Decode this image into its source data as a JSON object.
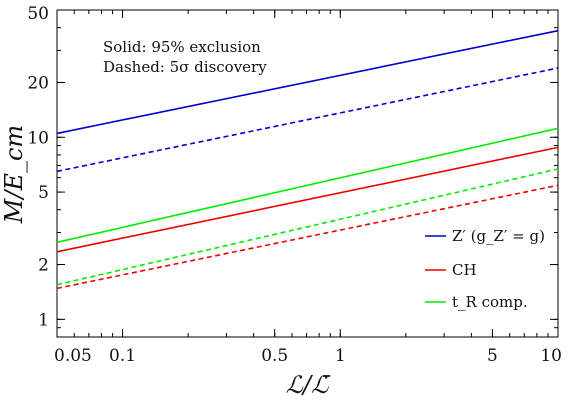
{
  "chart_data": {
    "type": "line",
    "xscale": "log",
    "yscale": "log",
    "xlim": [
      0.05,
      10
    ],
    "ylim": [
      0.8,
      50
    ],
    "xticks": [
      {
        "value": 0.05,
        "label": "0.05"
      },
      {
        "value": 0.1,
        "label": "0.1"
      },
      {
        "value": 0.5,
        "label": "0.5"
      },
      {
        "value": 1,
        "label": "1"
      },
      {
        "value": 5,
        "label": "5"
      },
      {
        "value": 10,
        "label": "10"
      }
    ],
    "yticks": [
      {
        "value": 1,
        "label": "1"
      },
      {
        "value": 2,
        "label": "2"
      },
      {
        "value": 5,
        "label": "5"
      },
      {
        "value": 10,
        "label": "10"
      },
      {
        "value": 20,
        "label": "20"
      },
      {
        "value": 50,
        "label": "50"
      }
    ],
    "xlabel": "ℒ/ℒ̄",
    "ylabel": "M/E_cm",
    "annotations": [
      "Solid: 95% exclusion",
      "Dashed: 5σ discovery"
    ],
    "legend_position": "bottom-right",
    "legend": [
      {
        "label": "Z′ (g_Z′ = g)",
        "color": "#0000cc"
      },
      {
        "label": "CH",
        "color": "#ee0000"
      },
      {
        "label": "t_R comp.",
        "color": "#00ee00"
      }
    ],
    "series": [
      {
        "legend": "Z′ (g_Z′ = g)",
        "style": "solid",
        "color": "#0000cc",
        "x": [
          0.05,
          10
        ],
        "y": [
          10.5,
          38.5
        ]
      },
      {
        "legend": "Z′ (g_Z′ = g)",
        "style": "dashed",
        "color": "#0000cc",
        "x": [
          0.05,
          10
        ],
        "y": [
          6.5,
          24.0
        ]
      },
      {
        "legend": "t_R comp.",
        "style": "solid",
        "color": "#00ee00",
        "x": [
          0.05,
          10
        ],
        "y": [
          2.65,
          11.2
        ]
      },
      {
        "legend": "CH",
        "style": "solid",
        "color": "#ee0000",
        "x": [
          0.05,
          10
        ],
        "y": [
          2.35,
          8.8
        ]
      },
      {
        "legend": "t_R comp.",
        "style": "dashed",
        "color": "#00ee00",
        "x": [
          0.05,
          10
        ],
        "y": [
          1.55,
          6.7
        ]
      },
      {
        "legend": "CH",
        "style": "dashed",
        "color": "#ee0000",
        "x": [
          0.05,
          10
        ],
        "y": [
          1.48,
          5.45
        ]
      }
    ]
  }
}
